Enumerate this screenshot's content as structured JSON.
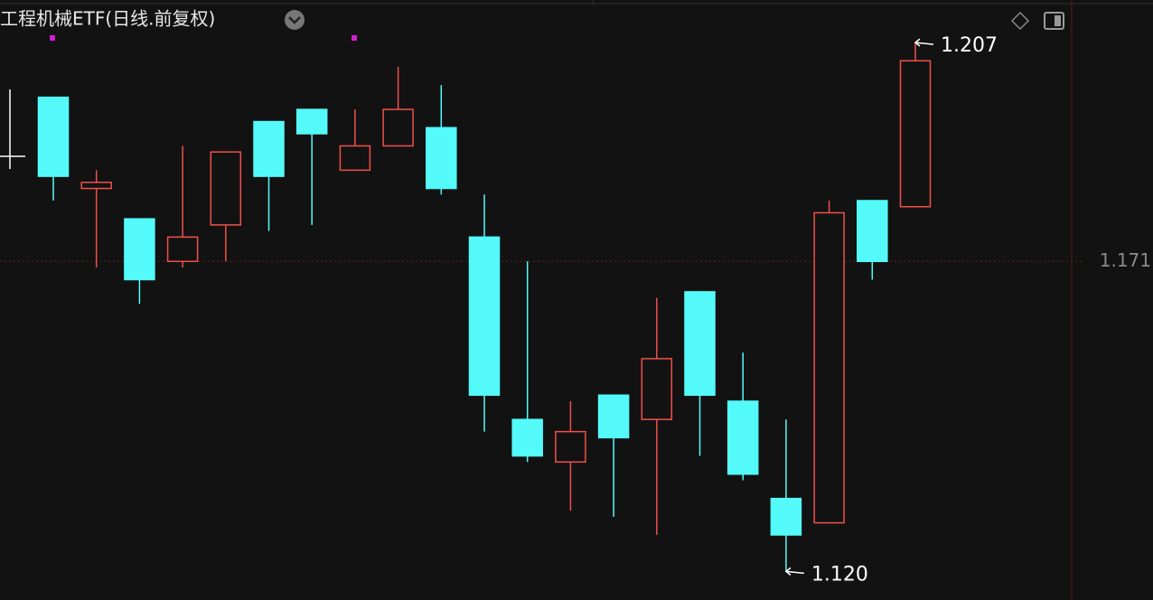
{
  "chart_data": {
    "type": "candlestick",
    "title": "工程机械ETF(日线.前复权)",
    "open": [
      1.198,
      1.183,
      1.178,
      1.171,
      1.177,
      1.194,
      1.196,
      1.186,
      1.19,
      1.193,
      1.175,
      1.145,
      1.138,
      1.149,
      1.145,
      1.166,
      1.148,
      1.132,
      1.128,
      1.181,
      1.18
    ],
    "high": [
      1.198,
      1.186,
      1.178,
      1.19,
      1.189,
      1.194,
      1.196,
      1.196,
      1.203,
      1.2,
      1.182,
      1.171,
      1.148,
      1.149,
      1.165,
      1.166,
      1.156,
      1.145,
      1.181,
      1.181,
      1.207
    ],
    "low": [
      1.181,
      1.17,
      1.164,
      1.17,
      1.171,
      1.176,
      1.177,
      1.186,
      1.19,
      1.182,
      1.143,
      1.138,
      1.13,
      1.129,
      1.126,
      1.139,
      1.135,
      1.12,
      1.128,
      1.168,
      1.18
    ],
    "close": [
      1.185,
      1.184,
      1.168,
      1.175,
      1.189,
      1.185,
      1.192,
      1.19,
      1.196,
      1.183,
      1.149,
      1.139,
      1.143,
      1.142,
      1.155,
      1.149,
      1.136,
      1.126,
      1.179,
      1.171,
      1.204
    ],
    "up_color": "#f0504a",
    "down_color": "#54fafa",
    "ylim": [
      1.1153,
      1.214
    ],
    "yticks": [
      1.171
    ],
    "extremes": {
      "values": [
        1.207,
        1.12
      ],
      "value_labels": [
        "1.207",
        "1.120"
      ]
    }
  }
}
